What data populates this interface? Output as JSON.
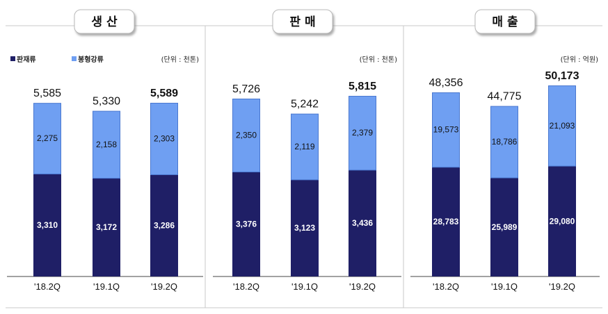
{
  "legend": [
    {
      "label": "판재류",
      "color": "#1f1f66"
    },
    {
      "label": "봉형강류",
      "color": "#6f9ff2"
    }
  ],
  "colors": {
    "bottom": "#1f1f66",
    "top": "#6f9ff2",
    "top_edge": "#4a78d0"
  },
  "chart_data": [
    {
      "type": "bar",
      "title": "생 산",
      "unit": "(단위 : 천톤)",
      "categories": [
        "'18.2Q",
        "'19.1Q",
        "'19.2Q"
      ],
      "totals": [
        "5,585",
        "5,330",
        "5,589"
      ],
      "series": [
        {
          "name": "판재류",
          "values": [
            3310,
            3172,
            3286
          ],
          "labels": [
            "3,310",
            "3,172",
            "3,286"
          ]
        },
        {
          "name": "봉형강류",
          "values": [
            2275,
            2158,
            2303
          ],
          "labels": [
            "2,275",
            "2,158",
            "2,303"
          ]
        }
      ],
      "bold_last_total": true
    },
    {
      "type": "bar",
      "title": "판 매",
      "unit": "(단위 : 천톤)",
      "categories": [
        "'18.2Q",
        "'19.1Q",
        "'19.2Q"
      ],
      "totals": [
        "5,726",
        "5,242",
        "5,815"
      ],
      "series": [
        {
          "name": "판재류",
          "values": [
            3376,
            3123,
            3436
          ],
          "labels": [
            "3,376",
            "3,123",
            "3,436"
          ]
        },
        {
          "name": "봉형강류",
          "values": [
            2350,
            2119,
            2379
          ],
          "labels": [
            "2,350",
            "2,119",
            "2,379"
          ]
        }
      ],
      "bold_last_total": true
    },
    {
      "type": "bar",
      "title": "매 출",
      "unit": "(단위 : 억원)",
      "categories": [
        "'18.2Q",
        "'19.1Q",
        "'19.2Q"
      ],
      "totals": [
        "48,356",
        "44,775",
        "50,173"
      ],
      "series": [
        {
          "name": "판재류",
          "values": [
            28783,
            25989,
            29080
          ],
          "labels": [
            "28,783",
            "25,989",
            "29,080"
          ]
        },
        {
          "name": "봉형강류",
          "values": [
            19573,
            18786,
            21093
          ],
          "labels": [
            "19,573",
            "18,786",
            "21,093"
          ]
        }
      ],
      "bold_last_total": true
    }
  ]
}
